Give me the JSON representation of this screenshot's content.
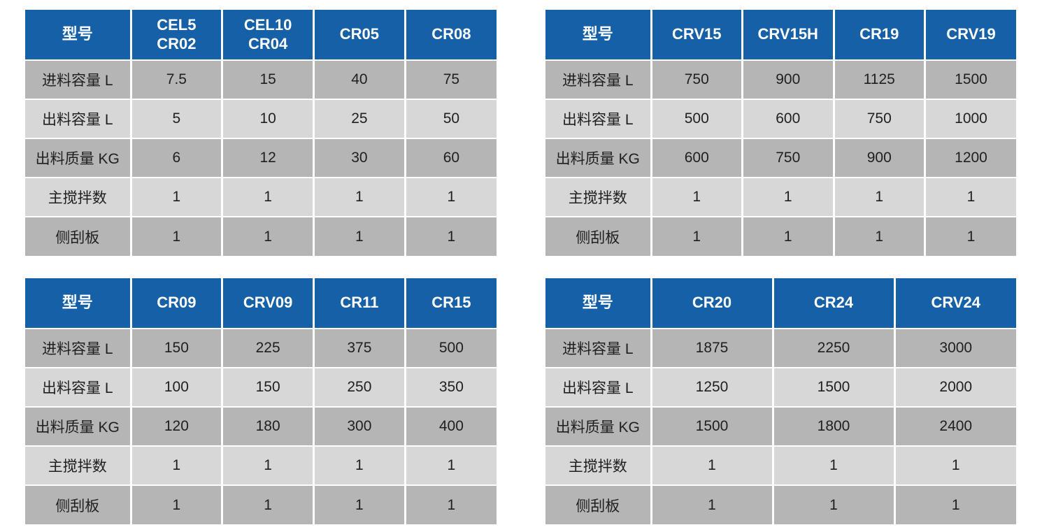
{
  "colors": {
    "header_bg": "#1560a7",
    "header_text": "#ffffff",
    "row_dark_bg": "#b5b5b5",
    "row_light_bg": "#d7d7d7",
    "cell_text": "#1f1f1f",
    "separator": "#ffffff"
  },
  "model_header_label": "型号",
  "row_labels": [
    "进料容量 L",
    "出料容量 L",
    "出料质量 KG",
    "主搅拌数",
    "侧刮板"
  ],
  "tables": [
    {
      "name": "top-left",
      "models": [
        "CEL5\nCR02",
        "CEL10\nCR04",
        "CR05",
        "CR08"
      ],
      "rows": [
        [
          "7.5",
          "15",
          "40",
          "75"
        ],
        [
          "5",
          "10",
          "25",
          "50"
        ],
        [
          "6",
          "12",
          "30",
          "60"
        ],
        [
          "1",
          "1",
          "1",
          "1"
        ],
        [
          "1",
          "1",
          "1",
          "1"
        ]
      ]
    },
    {
      "name": "top-right",
      "models": [
        "CRV15",
        "CRV15H",
        "CR19",
        "CRV19"
      ],
      "rows": [
        [
          "750",
          "900",
          "1125",
          "1500"
        ],
        [
          "500",
          "600",
          "750",
          "1000"
        ],
        [
          "600",
          "750",
          "900",
          "1200"
        ],
        [
          "1",
          "1",
          "1",
          "1"
        ],
        [
          "1",
          "1",
          "1",
          "1"
        ]
      ]
    },
    {
      "name": "bottom-left",
      "models": [
        "CR09",
        "CRV09",
        "CR11",
        "CR15"
      ],
      "rows": [
        [
          "150",
          "225",
          "375",
          "500"
        ],
        [
          "100",
          "150",
          "250",
          "350"
        ],
        [
          "120",
          "180",
          "300",
          "400"
        ],
        [
          "1",
          "1",
          "1",
          "1"
        ],
        [
          "1",
          "1",
          "1",
          "1"
        ]
      ]
    },
    {
      "name": "bottom-right",
      "models": [
        "CR20",
        "CR24",
        "CRV24"
      ],
      "rows": [
        [
          "1875",
          "2250",
          "3000"
        ],
        [
          "1250",
          "1500",
          "2000"
        ],
        [
          "1500",
          "1800",
          "2400"
        ],
        [
          "1",
          "1",
          "1"
        ],
        [
          "1",
          "1",
          "1"
        ]
      ]
    }
  ]
}
